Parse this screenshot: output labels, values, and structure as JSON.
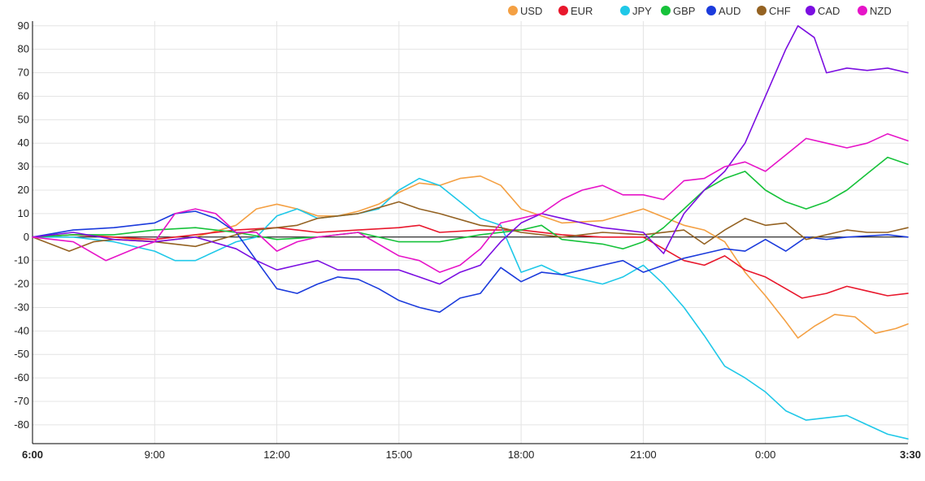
{
  "chart_data": {
    "type": "line",
    "title": "",
    "xlabel": "",
    "ylabel": "",
    "ylim": [
      -88,
      92
    ],
    "yticks": [
      90,
      80,
      70,
      60,
      50,
      40,
      30,
      20,
      10,
      0,
      -10,
      -20,
      -30,
      -40,
      -50,
      -60,
      -70,
      -80
    ],
    "x_tick_labels": [
      "6:00",
      "9:00",
      "12:00",
      "15:00",
      "18:00",
      "21:00",
      "0:00",
      "3:30"
    ],
    "x_tick_hours": [
      0,
      3,
      6,
      9,
      12,
      15,
      18,
      21.5
    ],
    "x_range_hours": [
      0,
      21.5
    ],
    "grid": true,
    "legend_position": "top-right",
    "series": [
      {
        "name": "USD",
        "color": "#f4a043",
        "points": [
          [
            0,
            0
          ],
          [
            1,
            1
          ],
          [
            2,
            0
          ],
          [
            3,
            -2
          ],
          [
            4,
            0
          ],
          [
            5,
            5
          ],
          [
            5.5,
            12
          ],
          [
            6,
            14
          ],
          [
            6.5,
            12
          ],
          [
            7,
            9
          ],
          [
            7.5,
            9
          ],
          [
            8,
            11
          ],
          [
            8.5,
            14
          ],
          [
            9,
            19
          ],
          [
            9.5,
            23
          ],
          [
            10,
            22
          ],
          [
            10.5,
            25
          ],
          [
            11,
            26
          ],
          [
            11.5,
            22
          ],
          [
            12,
            12
          ],
          [
            13,
            6
          ],
          [
            14,
            7
          ],
          [
            15,
            12
          ],
          [
            16,
            5
          ],
          [
            16.5,
            3
          ],
          [
            17,
            -2
          ],
          [
            17.5,
            -15
          ],
          [
            18,
            -25
          ],
          [
            18.5,
            -36
          ],
          [
            18.8,
            -43
          ],
          [
            19.2,
            -38
          ],
          [
            19.7,
            -33
          ],
          [
            20.2,
            -34
          ],
          [
            20.7,
            -41
          ],
          [
            21.2,
            -39
          ],
          [
            21.5,
            -37
          ]
        ]
      },
      {
        "name": "EUR",
        "color": "#e8172c",
        "points": [
          [
            0,
            0
          ],
          [
            1,
            1
          ],
          [
            2,
            0
          ],
          [
            3,
            -1
          ],
          [
            4,
            1
          ],
          [
            5,
            3
          ],
          [
            6,
            4
          ],
          [
            7,
            2
          ],
          [
            8,
            3
          ],
          [
            9,
            4
          ],
          [
            9.5,
            5
          ],
          [
            10,
            2
          ],
          [
            11,
            3
          ],
          [
            12,
            3
          ],
          [
            13,
            1
          ],
          [
            14,
            0
          ],
          [
            15,
            0
          ],
          [
            15.5,
            -5
          ],
          [
            16,
            -10
          ],
          [
            16.5,
            -12
          ],
          [
            17,
            -8
          ],
          [
            17.5,
            -14
          ],
          [
            18,
            -17
          ],
          [
            18.5,
            -22
          ],
          [
            18.9,
            -26
          ],
          [
            19.5,
            -24
          ],
          [
            20,
            -21
          ],
          [
            20.5,
            -23
          ],
          [
            21,
            -25
          ],
          [
            21.5,
            -24
          ]
        ]
      },
      {
        "name": "JPY",
        "color": "#1fc8e8",
        "points": [
          [
            0,
            0
          ],
          [
            1,
            0
          ],
          [
            2,
            -2
          ],
          [
            3,
            -6
          ],
          [
            3.5,
            -10
          ],
          [
            4,
            -10
          ],
          [
            5,
            -2
          ],
          [
            5.5,
            0
          ],
          [
            6,
            9
          ],
          [
            6.5,
            12
          ],
          [
            7,
            8
          ],
          [
            7.5,
            9
          ],
          [
            8,
            10
          ],
          [
            8.5,
            12
          ],
          [
            9,
            20
          ],
          [
            9.5,
            25
          ],
          [
            10,
            22
          ],
          [
            10.5,
            15
          ],
          [
            11,
            8
          ],
          [
            11.5,
            5
          ],
          [
            12,
            -15
          ],
          [
            12.5,
            -12
          ],
          [
            13,
            -16
          ],
          [
            13.5,
            -18
          ],
          [
            14,
            -20
          ],
          [
            14.5,
            -17
          ],
          [
            15,
            -12
          ],
          [
            15.5,
            -20
          ],
          [
            16,
            -30
          ],
          [
            16.5,
            -42
          ],
          [
            17,
            -55
          ],
          [
            17.5,
            -60
          ],
          [
            18,
            -66
          ],
          [
            18.5,
            -74
          ],
          [
            19,
            -78
          ],
          [
            19.5,
            -77
          ],
          [
            20,
            -76
          ],
          [
            20.5,
            -80
          ],
          [
            21,
            -84
          ],
          [
            21.5,
            -86
          ]
        ]
      },
      {
        "name": "GBP",
        "color": "#16c23a",
        "points": [
          [
            0,
            0
          ],
          [
            1,
            1
          ],
          [
            2,
            1
          ],
          [
            3,
            3
          ],
          [
            4,
            4
          ],
          [
            5,
            2
          ],
          [
            6,
            -1
          ],
          [
            7,
            0
          ],
          [
            8,
            2
          ],
          [
            9,
            -2
          ],
          [
            10,
            -2
          ],
          [
            11,
            1
          ],
          [
            12,
            3
          ],
          [
            12.5,
            5
          ],
          [
            13,
            -1
          ],
          [
            14,
            -3
          ],
          [
            14.5,
            -5
          ],
          [
            15,
            -2
          ],
          [
            15.5,
            4
          ],
          [
            16,
            12
          ],
          [
            16.5,
            20
          ],
          [
            17,
            25
          ],
          [
            17.5,
            28
          ],
          [
            18,
            20
          ],
          [
            18.5,
            15
          ],
          [
            19,
            12
          ],
          [
            19.5,
            15
          ],
          [
            20,
            20
          ],
          [
            20.5,
            27
          ],
          [
            21,
            34
          ],
          [
            21.5,
            31
          ]
        ]
      },
      {
        "name": "AUD",
        "color": "#1b3bdc",
        "points": [
          [
            0,
            0
          ],
          [
            1,
            3
          ],
          [
            2,
            4
          ],
          [
            3,
            6
          ],
          [
            3.5,
            10
          ],
          [
            4,
            11
          ],
          [
            4.5,
            8
          ],
          [
            5,
            2
          ],
          [
            5.5,
            -10
          ],
          [
            6,
            -22
          ],
          [
            6.5,
            -24
          ],
          [
            7,
            -20
          ],
          [
            7.5,
            -17
          ],
          [
            8,
            -18
          ],
          [
            8.5,
            -22
          ],
          [
            9,
            -27
          ],
          [
            9.5,
            -30
          ],
          [
            10,
            -32
          ],
          [
            10.5,
            -26
          ],
          [
            11,
            -24
          ],
          [
            11.5,
            -13
          ],
          [
            12,
            -19
          ],
          [
            12.5,
            -15
          ],
          [
            13,
            -16
          ],
          [
            13.5,
            -14
          ],
          [
            14,
            -12
          ],
          [
            14.5,
            -10
          ],
          [
            15,
            -15
          ],
          [
            15.5,
            -12
          ],
          [
            16,
            -9
          ],
          [
            16.5,
            -7
          ],
          [
            17,
            -5
          ],
          [
            17.5,
            -6
          ],
          [
            18,
            -1
          ],
          [
            18.5,
            -6
          ],
          [
            19,
            0
          ],
          [
            19.5,
            -1
          ],
          [
            20,
            0
          ],
          [
            21,
            1
          ],
          [
            21.5,
            0
          ]
        ]
      },
      {
        "name": "CHF",
        "color": "#946222",
        "points": [
          [
            0,
            0
          ],
          [
            0.9,
            -6
          ],
          [
            1.5,
            -2
          ],
          [
            2,
            -1
          ],
          [
            3,
            -2
          ],
          [
            4,
            -4
          ],
          [
            5,
            1
          ],
          [
            5.5,
            3
          ],
          [
            6,
            4
          ],
          [
            6.5,
            5
          ],
          [
            7,
            8
          ],
          [
            8,
            10
          ],
          [
            9,
            15
          ],
          [
            9.5,
            12
          ],
          [
            10,
            10
          ],
          [
            11,
            5
          ],
          [
            11.5,
            4
          ],
          [
            12,
            2
          ],
          [
            13,
            0
          ],
          [
            14,
            2
          ],
          [
            15,
            1
          ],
          [
            16,
            3
          ],
          [
            16.5,
            -3
          ],
          [
            17,
            3
          ],
          [
            17.5,
            8
          ],
          [
            18,
            5
          ],
          [
            18.5,
            6
          ],
          [
            19,
            -1
          ],
          [
            19.5,
            1
          ],
          [
            20,
            3
          ],
          [
            20.5,
            2
          ],
          [
            21,
            2
          ],
          [
            21.5,
            4
          ]
        ]
      },
      {
        "name": "CAD",
        "color": "#7b0ee1",
        "points": [
          [
            0,
            0
          ],
          [
            1,
            2
          ],
          [
            2,
            -1
          ],
          [
            3,
            -2
          ],
          [
            4,
            0
          ],
          [
            5,
            -5
          ],
          [
            5.5,
            -10
          ],
          [
            6,
            -14
          ],
          [
            6.5,
            -12
          ],
          [
            7,
            -10
          ],
          [
            7.5,
            -14
          ],
          [
            8,
            -14
          ],
          [
            9,
            -14
          ],
          [
            9.5,
            -17
          ],
          [
            10,
            -20
          ],
          [
            10.5,
            -15
          ],
          [
            11,
            -12
          ],
          [
            11.5,
            -2
          ],
          [
            12,
            6
          ],
          [
            12.5,
            10
          ],
          [
            13,
            8
          ],
          [
            13.5,
            6
          ],
          [
            14,
            4
          ],
          [
            15,
            2
          ],
          [
            15.5,
            -7
          ],
          [
            16,
            10
          ],
          [
            16.5,
            20
          ],
          [
            17,
            28
          ],
          [
            17.5,
            40
          ],
          [
            18,
            60
          ],
          [
            18.5,
            80
          ],
          [
            18.8,
            90
          ],
          [
            19.2,
            85
          ],
          [
            19.5,
            70
          ],
          [
            20,
            72
          ],
          [
            20.5,
            71
          ],
          [
            21,
            72
          ],
          [
            21.5,
            70
          ]
        ]
      },
      {
        "name": "NZD",
        "color": "#e614c8",
        "points": [
          [
            0,
            0
          ],
          [
            1,
            -2
          ],
          [
            1.8,
            -10
          ],
          [
            2.5,
            -5
          ],
          [
            3,
            -2
          ],
          [
            3.5,
            10
          ],
          [
            4,
            12
          ],
          [
            4.5,
            10
          ],
          [
            5,
            2
          ],
          [
            5.5,
            2
          ],
          [
            6,
            -6
          ],
          [
            6.5,
            -2
          ],
          [
            7,
            0
          ],
          [
            8,
            2
          ],
          [
            9,
            -8
          ],
          [
            9.5,
            -10
          ],
          [
            10,
            -15
          ],
          [
            10.5,
            -12
          ],
          [
            11,
            -5
          ],
          [
            11.5,
            6
          ],
          [
            12,
            8
          ],
          [
            12.5,
            10
          ],
          [
            13,
            16
          ],
          [
            13.5,
            20
          ],
          [
            14,
            22
          ],
          [
            14.5,
            18
          ],
          [
            15,
            18
          ],
          [
            15.5,
            16
          ],
          [
            16,
            24
          ],
          [
            16.5,
            25
          ],
          [
            17,
            30
          ],
          [
            17.5,
            32
          ],
          [
            18,
            28
          ],
          [
            18.5,
            35
          ],
          [
            19,
            42
          ],
          [
            19.5,
            40
          ],
          [
            20,
            38
          ],
          [
            20.5,
            40
          ],
          [
            21,
            44
          ],
          [
            21.5,
            41
          ]
        ]
      }
    ]
  }
}
